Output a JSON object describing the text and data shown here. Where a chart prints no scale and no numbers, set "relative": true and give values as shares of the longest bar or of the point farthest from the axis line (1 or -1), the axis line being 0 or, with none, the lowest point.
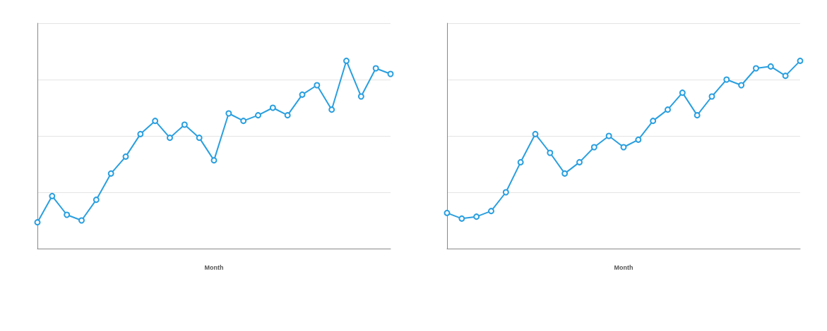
{
  "chart_data": [
    {
      "type": "line",
      "xlabel": "Month",
      "relative": true,
      "categories": [
        null,
        null,
        null,
        null,
        null,
        null,
        null,
        null,
        null,
        null,
        null,
        null,
        null,
        null,
        null,
        null,
        null,
        null,
        null,
        null,
        null,
        null,
        null,
        null,
        null
      ],
      "series": [
        {
          "color": "#2a9fdf",
          "values": [
            0.14,
            0.28,
            0.18,
            0.15,
            0.26,
            0.4,
            0.49,
            0.61,
            0.68,
            0.59,
            0.66,
            0.59,
            0.47,
            0.72,
            0.68,
            0.71,
            0.75,
            0.71,
            0.82,
            0.87,
            0.74,
            1,
            0.81,
            0.96,
            0.93
          ]
        }
      ],
      "grid": "y",
      "marker": "circle",
      "line_style": "solid"
    },
    {
      "type": "line",
      "xlabel": "Month",
      "relative": true,
      "categories": [
        null,
        null,
        null,
        null,
        null,
        null,
        null,
        null,
        null,
        null,
        null,
        null,
        null,
        null,
        null,
        null,
        null,
        null,
        null,
        null,
        null,
        null,
        null,
        null,
        null
      ],
      "series": [
        {
          "color": "#2a9fdf",
          "values": [
            0.19,
            0.16,
            0.17,
            0.2,
            0.3,
            0.46,
            0.61,
            0.51,
            0.4,
            0.46,
            0.54,
            0.6,
            0.54,
            0.58,
            0.68,
            0.74,
            0.83,
            0.71,
            0.81,
            0.9,
            0.87,
            0.96,
            0.97,
            0.92,
            1
          ]
        }
      ],
      "grid": "y",
      "marker": "circle",
      "line_style": "solid"
    }
  ]
}
